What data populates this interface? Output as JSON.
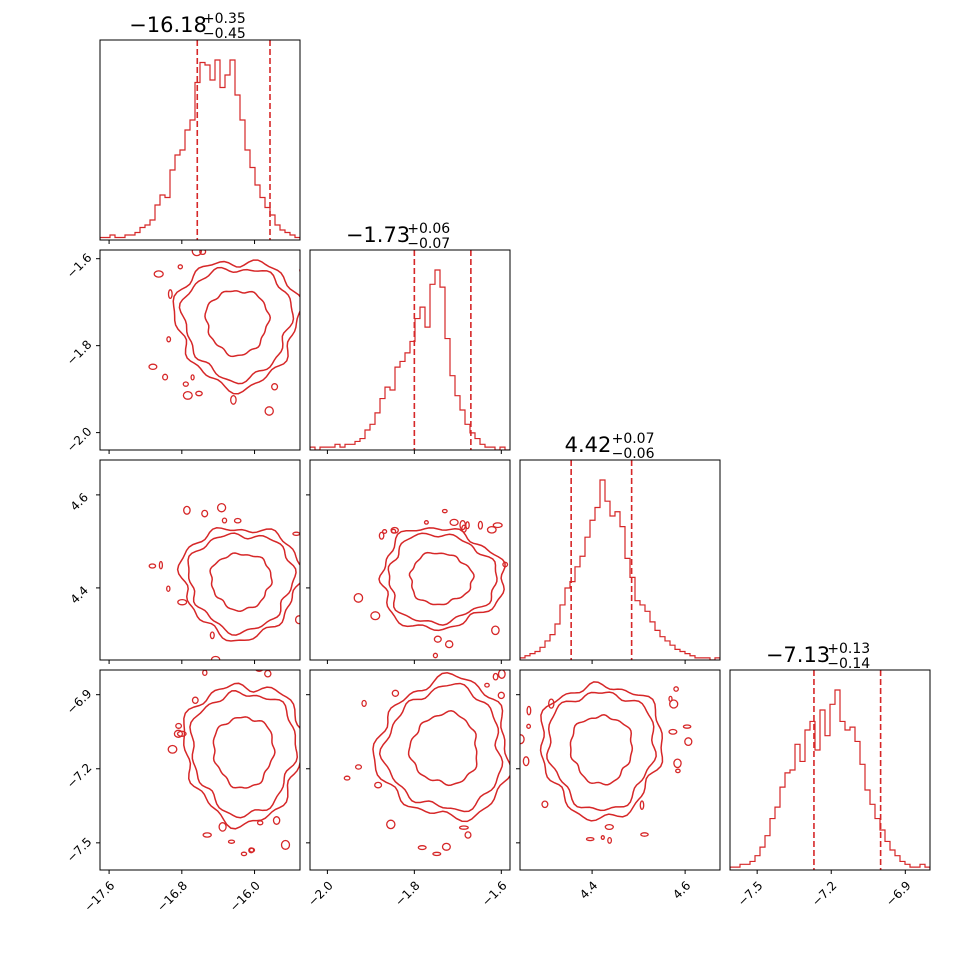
{
  "chart_data": {
    "type": "corner",
    "color": "#d62728",
    "parameters": [
      {
        "median": "−16.18",
        "plus": "+0.35",
        "minus": "−0.45",
        "range": [
          -17.7,
          -15.5
        ],
        "q16": -16.63,
        "q84": -15.83,
        "ticks": [
          -17.6,
          -16.8,
          -16.0
        ],
        "tick_labels": [
          "−17.6",
          "−16.8",
          "−16.0"
        ]
      },
      {
        "median": "−1.73",
        "plus": "+0.06",
        "minus": "−0.07",
        "range": [
          -2.04,
          -1.58
        ],
        "q16": -1.8,
        "q84": -1.67,
        "ticks": [
          -2.0,
          -1.8,
          -1.6
        ],
        "tick_labels": [
          "−2.0",
          "−1.8",
          "−1.6"
        ]
      },
      {
        "median": "4.42",
        "plus": "+0.07",
        "minus": "−0.06",
        "range": [
          4.245,
          4.675
        ],
        "q16": 4.355,
        "q84": 4.485,
        "ticks": [
          4.4,
          4.6
        ],
        "tick_labels": [
          "4.4",
          "4.6"
        ]
      },
      {
        "median": "−7.13",
        "plus": "+0.13",
        "minus": "−0.14",
        "range": [
          -7.61,
          -6.8
        ],
        "q16": -7.27,
        "q84": -7.0,
        "ticks": [
          -7.5,
          -7.2,
          -6.9
        ],
        "tick_labels": [
          "−7.5",
          "−7.2",
          "−6.9"
        ]
      }
    ],
    "histograms": [
      [
        1,
        1,
        2,
        1,
        1,
        2,
        2,
        3,
        5,
        6,
        8,
        14,
        18,
        17,
        28,
        34,
        36,
        44,
        48,
        63,
        71,
        70,
        64,
        72,
        61,
        66,
        72,
        58,
        48,
        36,
        29,
        22,
        17,
        13,
        10,
        6,
        4,
        3,
        2,
        1
      ],
      [
        1,
        0,
        1,
        1,
        1,
        2,
        1,
        2,
        2,
        3,
        4,
        7,
        9,
        13,
        18,
        22,
        21,
        29,
        31,
        34,
        38,
        46,
        50,
        43,
        58,
        63,
        57,
        39,
        26,
        19,
        14,
        9,
        6,
        4,
        2,
        1,
        1,
        0,
        1,
        0
      ],
      [
        1,
        2,
        3,
        4,
        6,
        9,
        12,
        17,
        26,
        34,
        37,
        44,
        49,
        58,
        66,
        72,
        85,
        75,
        68,
        70,
        63,
        48,
        39,
        28,
        26,
        23,
        18,
        14,
        11,
        9,
        7,
        5,
        4,
        3,
        2,
        1,
        1,
        1,
        0,
        1
      ],
      [
        1,
        1,
        2,
        2,
        3,
        5,
        8,
        12,
        18,
        22,
        29,
        34,
        35,
        44,
        38,
        49,
        52,
        42,
        56,
        47,
        58,
        63,
        52,
        49,
        50,
        45,
        37,
        28,
        23,
        18,
        14,
        10,
        7,
        5,
        3,
        2,
        1,
        1,
        2,
        1
      ]
    ],
    "contour_pairs": [
      {
        "x": 0,
        "y": 1,
        "center": [
          -16.19,
          -1.745
        ],
        "radius": [
          0.62,
          0.135
        ],
        "tilt": 0.05
      },
      {
        "x": 0,
        "y": 2,
        "center": [
          -16.15,
          4.415
        ],
        "radius": [
          0.6,
          0.11
        ],
        "tilt": 0.02
      },
      {
        "x": 1,
        "y": 2,
        "center": [
          -1.74,
          4.42
        ],
        "radius": [
          0.13,
          0.1
        ],
        "tilt": -0.55
      },
      {
        "x": 0,
        "y": 3,
        "center": [
          -16.12,
          -7.13
        ],
        "radius": [
          0.6,
          0.26
        ],
        "tilt": 0.05
      },
      {
        "x": 1,
        "y": 3,
        "center": [
          -1.73,
          -7.12
        ],
        "radius": [
          0.14,
          0.26
        ],
        "tilt": 0.7
      },
      {
        "x": 2,
        "y": 3,
        "center": [
          4.42,
          -7.12
        ],
        "radius": [
          0.12,
          0.25
        ],
        "tilt": 0.02
      }
    ]
  }
}
